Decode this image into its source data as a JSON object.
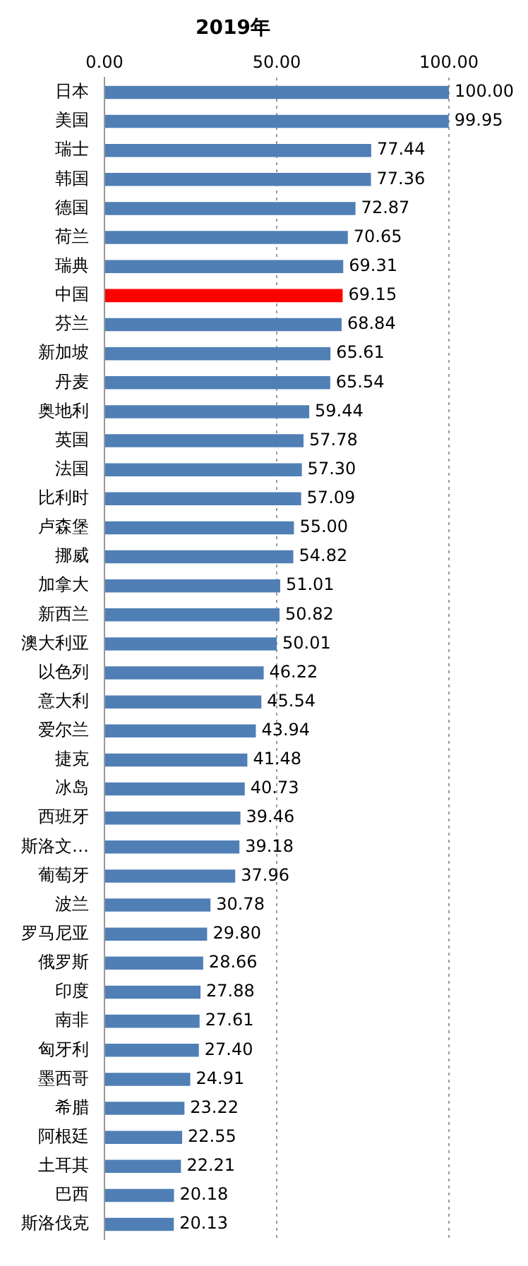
{
  "chart_data": {
    "type": "bar",
    "orientation": "horizontal",
    "title": "2019年",
    "categories": [
      "日本",
      "美国",
      "瑞士",
      "韩国",
      "德国",
      "荷兰",
      "瑞典",
      "中国",
      "芬兰",
      "新加坡",
      "丹麦",
      "奥地利",
      "英国",
      "法国",
      "比利时",
      "卢森堡",
      "挪威",
      "加拿大",
      "新西兰",
      "澳大利亚",
      "以色列",
      "意大利",
      "爱尔兰",
      "捷克",
      "冰岛",
      "西班牙",
      "斯洛文…",
      "葡萄牙",
      "波兰",
      "罗马尼亚",
      "俄罗斯",
      "印度",
      "南非",
      "匈牙利",
      "墨西哥",
      "希腊",
      "阿根廷",
      "土耳其",
      "巴西",
      "斯洛伐克"
    ],
    "values": [
      100.0,
      99.95,
      77.44,
      77.36,
      72.87,
      70.65,
      69.31,
      69.15,
      68.84,
      65.61,
      65.54,
      59.44,
      57.78,
      57.3,
      57.09,
      55.0,
      54.82,
      51.01,
      50.82,
      50.01,
      46.22,
      45.54,
      43.94,
      41.48,
      40.73,
      39.46,
      39.18,
      37.96,
      30.78,
      29.8,
      28.66,
      27.88,
      27.61,
      27.4,
      24.91,
      23.22,
      22.55,
      22.21,
      20.18,
      20.13
    ],
    "value_labels": [
      "100.00",
      "99.95",
      "77.44",
      "77.36",
      "72.87",
      "70.65",
      "69.31",
      "69.15",
      "68.84",
      "65.61",
      "65.54",
      "59.44",
      "57.78",
      "57.30",
      "57.09",
      "55.00",
      "54.82",
      "51.01",
      "50.82",
      "50.01",
      "46.22",
      "45.54",
      "43.94",
      "41.48",
      "40.73",
      "39.46",
      "39.18",
      "37.96",
      "30.78",
      "29.80",
      "28.66",
      "27.88",
      "27.61",
      "27.40",
      "24.91",
      "23.22",
      "22.55",
      "22.21",
      "20.18",
      "20.13"
    ],
    "colors": [
      "#4f7fb5",
      "#4f7fb5",
      "#4f7fb5",
      "#4f7fb5",
      "#4f7fb5",
      "#4f7fb5",
      "#4f7fb5",
      "#ff0000",
      "#4f7fb5",
      "#4f7fb5",
      "#4f7fb5",
      "#4f7fb5",
      "#4f7fb5",
      "#4f7fb5",
      "#4f7fb5",
      "#4f7fb5",
      "#4f7fb5",
      "#4f7fb5",
      "#4f7fb5",
      "#4f7fb5",
      "#4f7fb5",
      "#4f7fb5",
      "#4f7fb5",
      "#4f7fb5",
      "#4f7fb5",
      "#4f7fb5",
      "#4f7fb5",
      "#4f7fb5",
      "#4f7fb5",
      "#4f7fb5",
      "#4f7fb5",
      "#4f7fb5",
      "#4f7fb5",
      "#4f7fb5",
      "#4f7fb5",
      "#4f7fb5",
      "#4f7fb5",
      "#4f7fb5",
      "#4f7fb5",
      "#4f7fb5"
    ],
    "xlim": [
      0,
      100
    ],
    "xticks": [
      {
        "value": 0,
        "label": "0.00"
      },
      {
        "value": 50,
        "label": "50.00"
      },
      {
        "value": 100,
        "label": "100.00"
      }
    ],
    "grid": "x",
    "legend": false
  }
}
